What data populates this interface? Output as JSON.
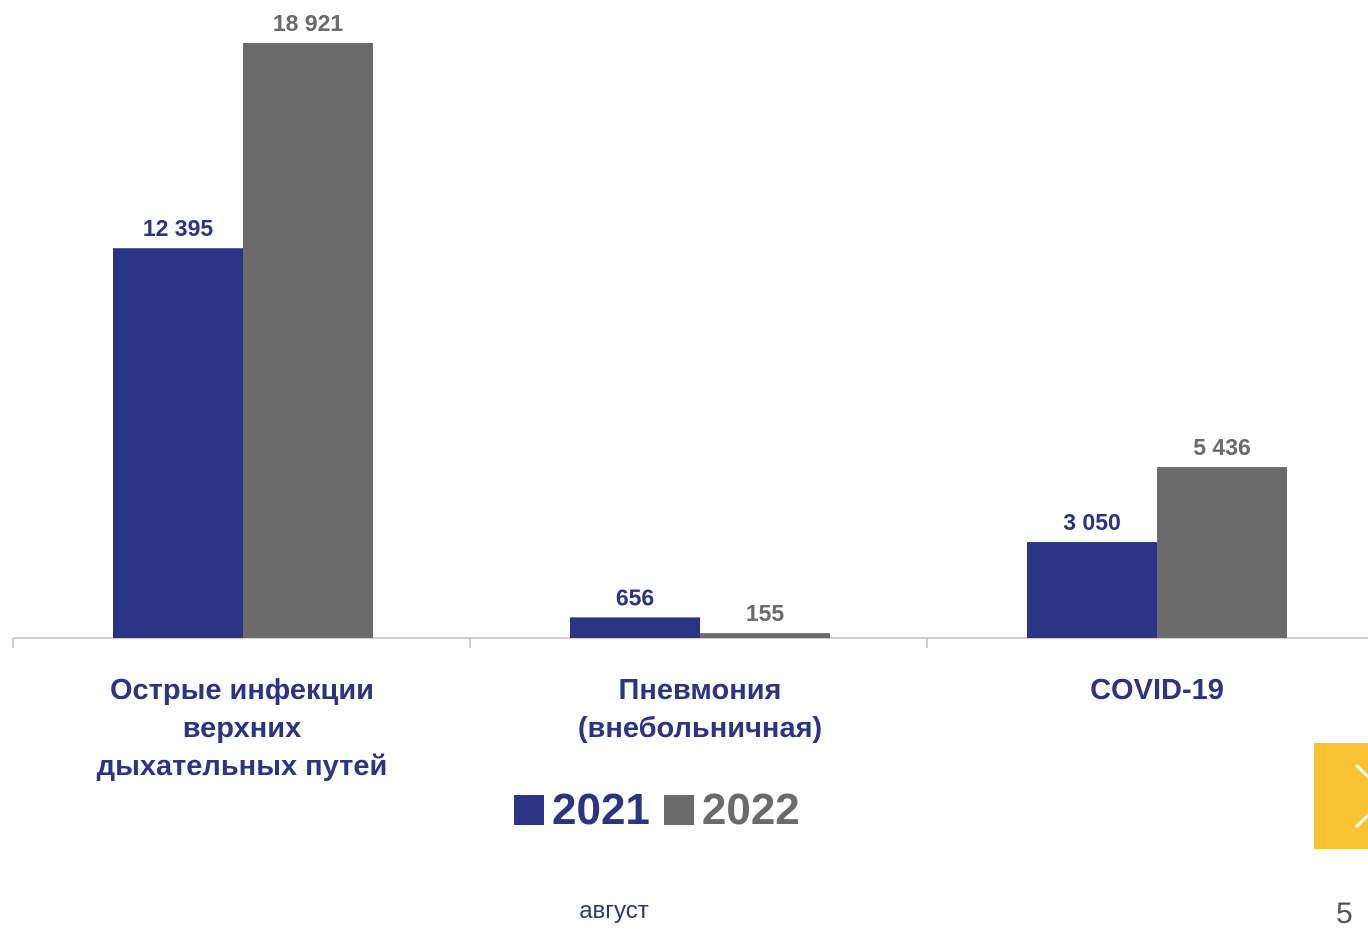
{
  "chart_data": {
    "type": "bar",
    "categories": [
      "Острые инфекции\nверхних\nдыхательных путей",
      "Пневмония\n(внебольничная)",
      "COVID-19"
    ],
    "series": [
      {
        "name": "2021",
        "color": "#2b3585",
        "values": [
          12395,
          656,
          3050
        ],
        "labels": [
          "12 395",
          "656",
          "3 050"
        ]
      },
      {
        "name": "2022",
        "color": "#6b6b6b",
        "values": [
          18921,
          155,
          5436
        ],
        "labels": [
          "18 921",
          "155",
          "5 436"
        ]
      }
    ],
    "ylim": [
      0,
      18921
    ],
    "grid": false,
    "legend": "bottom-center"
  },
  "footer": {
    "month": "август",
    "page_number": "5"
  },
  "nav": {
    "next_icon": "chevron-right-icon",
    "accent": "#f8c230"
  }
}
